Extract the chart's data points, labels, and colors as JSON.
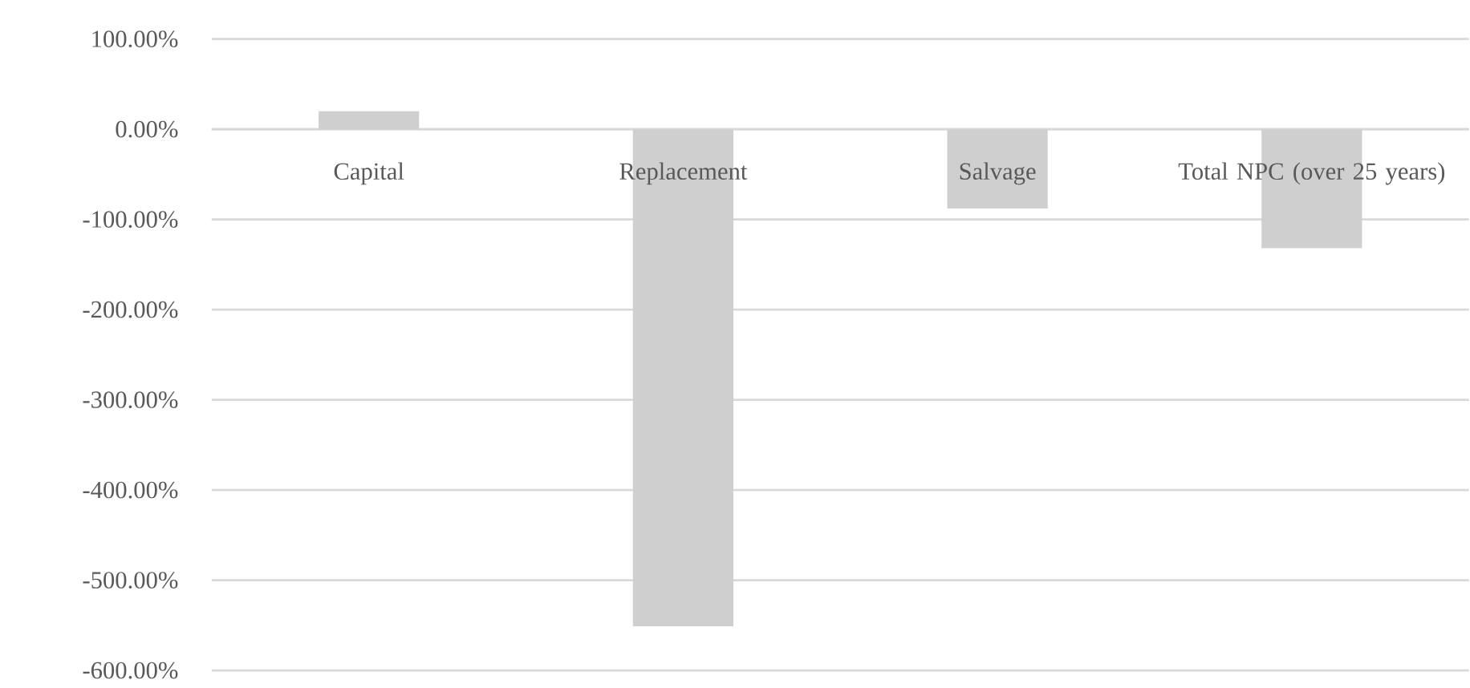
{
  "chart_data": {
    "type": "bar",
    "categories": [
      "Capital",
      "Replacement",
      "Salvage",
      "Total NPC (over 25 years)"
    ],
    "values": [
      20,
      -551,
      -88,
      -132
    ],
    "color": "#cfcfcf",
    "ylim": [
      -600,
      100
    ],
    "yticks": [
      {
        "value": 100,
        "label": "100.00%"
      },
      {
        "value": 0,
        "label": "0.00%"
      },
      {
        "value": -100,
        "label": "-100.00%"
      },
      {
        "value": -200,
        "label": "-200.00%"
      },
      {
        "value": -300,
        "label": "-300.00%"
      },
      {
        "value": -400,
        "label": "-400.00%"
      },
      {
        "value": -500,
        "label": "-500.00%"
      },
      {
        "value": -600,
        "label": "-600.00%"
      }
    ],
    "grid": "y"
  }
}
